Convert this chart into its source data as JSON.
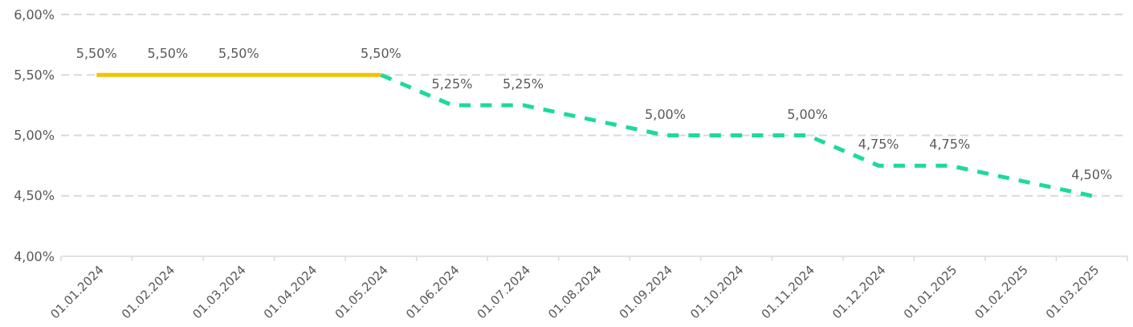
{
  "chart_data": {
    "type": "line",
    "categories": [
      "01.01.2024",
      "01.02.2024",
      "01.03.2024",
      "01.04.2024",
      "01.05.2024",
      "01.06.2024",
      "01.07.2024",
      "01.08.2024",
      "01.09.2024",
      "01.10.2024",
      "01.11.2024",
      "01.12.2024",
      "01.01.2025",
      "01.02.2025",
      "01.03.2025"
    ],
    "series": [
      {
        "color": "#f5c100",
        "line_style": "solid",
        "values": [
          5.5,
          5.5,
          5.5,
          null,
          5.5,
          null,
          null,
          null,
          null,
          null,
          null,
          null,
          null,
          null,
          null
        ],
        "value_labels": [
          "5,50%",
          "5,50%",
          "5,50%",
          null,
          null,
          null,
          null,
          null,
          null,
          null,
          null,
          null,
          null,
          null,
          null
        ]
      },
      {
        "color": "#1ed99f",
        "line_style": "dashed",
        "values": [
          null,
          null,
          null,
          null,
          5.5,
          5.25,
          5.25,
          null,
          5.0,
          null,
          5.0,
          4.75,
          4.75,
          null,
          4.5
        ],
        "value_labels": [
          null,
          null,
          null,
          null,
          "5,50%",
          "5,25%",
          "5,25%",
          null,
          "5,00%",
          null,
          "5,00%",
          "4,75%",
          "4,75%",
          null,
          "4,50%"
        ]
      }
    ],
    "ylim": [
      4,
      6
    ],
    "yticks": [
      {
        "value": 4,
        "label": "4,00%"
      },
      {
        "value": 4.5,
        "label": "4,50%"
      },
      {
        "value": 5,
        "label": "5,00%"
      },
      {
        "value": 5.5,
        "label": "5,50%"
      },
      {
        "value": 6,
        "label": "6,00%"
      }
    ],
    "grid": "y",
    "marker": "none"
  }
}
